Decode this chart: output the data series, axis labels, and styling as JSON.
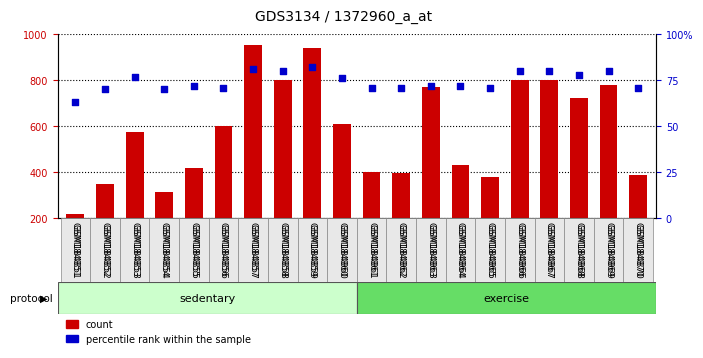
{
  "title": "GDS3134 / 1372960_a_at",
  "samples": [
    "GSM184851",
    "GSM184852",
    "GSM184853",
    "GSM184854",
    "GSM184855",
    "GSM184856",
    "GSM184857",
    "GSM184858",
    "GSM184859",
    "GSM184860",
    "GSM184861",
    "GSM184862",
    "GSM184863",
    "GSM184864",
    "GSM184865",
    "GSM184866",
    "GSM184867",
    "GSM184868",
    "GSM184869",
    "GSM184870"
  ],
  "count_values": [
    220,
    350,
    575,
    315,
    420,
    600,
    955,
    800,
    940,
    610,
    400,
    395,
    770,
    430,
    380,
    800,
    800,
    725,
    780,
    390
  ],
  "percentile_values": [
    63,
    70,
    77,
    70,
    72,
    71,
    81,
    80,
    82,
    76,
    71,
    71,
    72,
    72,
    71,
    80,
    80,
    78,
    80,
    71
  ],
  "sedentary_count": 10,
  "exercise_count": 10,
  "bar_color": "#cc0000",
  "dot_color": "#0000cc",
  "sedentary_color": "#ccffcc",
  "exercise_color": "#66dd66",
  "protocol_label": "protocol",
  "sedentary_label": "sedentary",
  "exercise_label": "exercise",
  "legend_count": "count",
  "legend_percentile": "percentile rank within the sample",
  "ylim_left": [
    200,
    1000
  ],
  "ylim_right": [
    0,
    100
  ],
  "yticks_left": [
    200,
    400,
    600,
    800,
    1000
  ],
  "yticks_right": [
    0,
    25,
    50,
    75,
    100
  ],
  "ytick_labels_right": [
    "0",
    "25",
    "50",
    "75",
    "100%"
  ],
  "background_color": "#ffffff",
  "plot_bg_color": "#ffffff",
  "grid_color": "#000000"
}
